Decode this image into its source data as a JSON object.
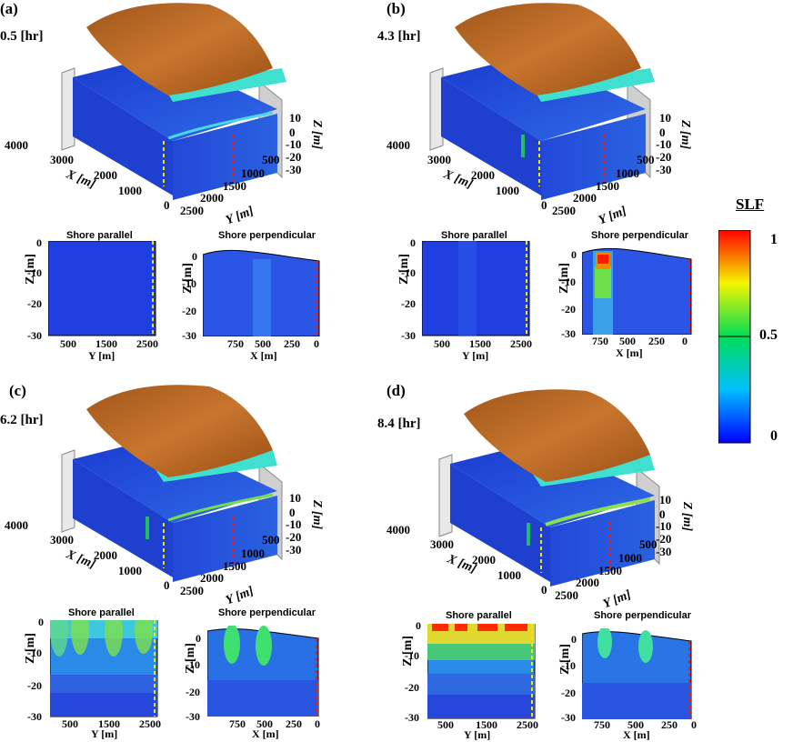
{
  "panels": [
    {
      "label": "(a)",
      "time": "0.5 [hr]"
    },
    {
      "label": "(b)",
      "time": "4.3 [hr]"
    },
    {
      "label": "(c)",
      "time": "6.2 [hr]"
    },
    {
      "label": "(d)",
      "time": "8.4 [hr]"
    }
  ],
  "block_axes": {
    "x_title": "X [m]",
    "y_title": "Y [m]",
    "z_title": "Z [m]",
    "x_ticks": [
      "4000",
      "3000",
      "2000",
      "1000",
      "0"
    ],
    "y_ticks": [
      "2500",
      "2000",
      "1500",
      "1000",
      "500"
    ],
    "z_ticks": [
      "10",
      "0",
      "-10",
      "-20",
      "-30"
    ]
  },
  "sections": {
    "parallel_title": "Shore parallel",
    "perpendicular_title": "Shore perpendicular",
    "z_title": "Z [m]",
    "z_ticks": [
      "0",
      "-10",
      "-20",
      "-30"
    ],
    "y_title": "Y [m]",
    "y_ticks": [
      "500",
      "1500",
      "2500"
    ],
    "x_title": "X [m]",
    "x_ticks": [
      "750",
      "500",
      "250",
      "0"
    ]
  },
  "colorbar": {
    "title": "SLF",
    "ticks": [
      "1",
      "0.5",
      "0"
    ]
  },
  "colors": {
    "terrain": "#b5651d",
    "water": "#40e0d0",
    "aquifer": "#1a3ccf",
    "marker_parallel": "#f2e600",
    "marker_perpendicular": "#e02020"
  }
}
